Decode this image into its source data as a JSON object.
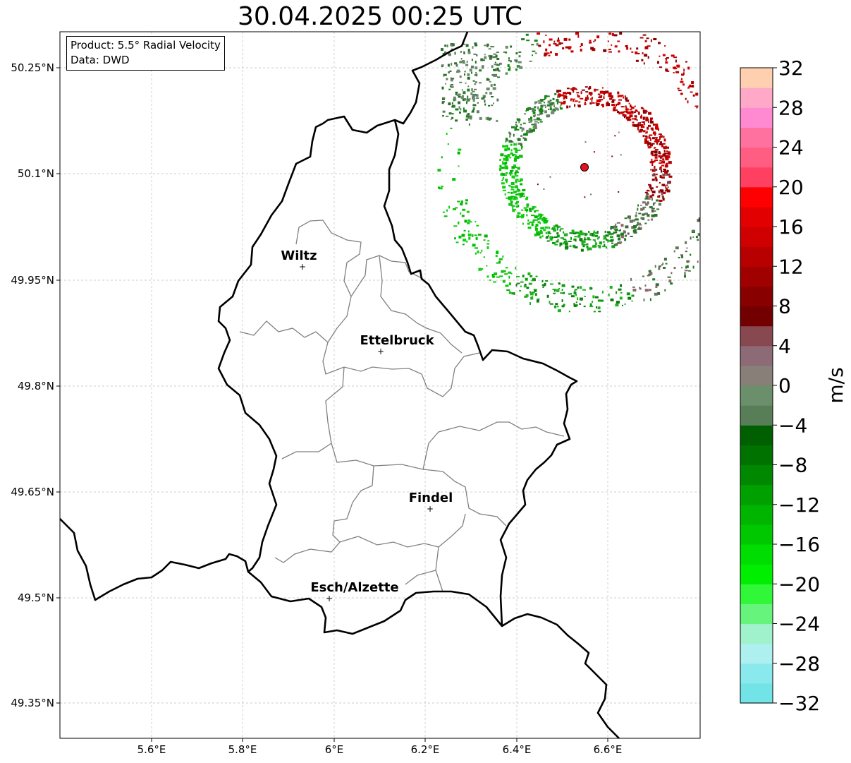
{
  "title": "30.04.2025 00:25 UTC",
  "info": {
    "product": "Product: 5.5° Radial Velocity",
    "data_source": "Data: DWD"
  },
  "axes": {
    "lon_ticks": [
      "5.6°E",
      "5.8°E",
      "6°E",
      "6.2°E",
      "6.4°E",
      "6.6°E"
    ],
    "lat_ticks": [
      "50.25°N",
      "50.1°N",
      "49.95°N",
      "49.8°N",
      "49.65°N",
      "49.5°N",
      "49.35°N"
    ]
  },
  "cities": [
    {
      "name": "Wiltz",
      "lon": 5.93,
      "lat": 49.967
    },
    {
      "name": "Ettelbruck",
      "lon": 6.1,
      "lat": 49.848
    },
    {
      "name": "Findel",
      "lon": 6.21,
      "lat": 49.627
    },
    {
      "name": "Esch/Alzette",
      "lon": 5.99,
      "lat": 49.499
    }
  ],
  "radar_site": {
    "lon": 6.548,
    "lat": 50.111,
    "color": "#e8101e"
  },
  "colorbar": {
    "label": "m/s",
    "min": -32,
    "max": 32,
    "tick_labels": [
      "32",
      "28",
      "24",
      "20",
      "16",
      "12",
      "8",
      "4",
      "0",
      "−4",
      "−8",
      "−12",
      "−16",
      "−20",
      "−24",
      "−28",
      "−32"
    ],
    "colors": [
      "#72e4e8",
      "#8ae9ec",
      "#aeeff0",
      "#a0f2cc",
      "#66f47c",
      "#30f838",
      "#00ee00",
      "#00dd00",
      "#00c800",
      "#00b500",
      "#00a000",
      "#008800",
      "#007200",
      "#005f00",
      "#577e57",
      "#6b8e6b",
      "#888078",
      "#8c6b77",
      "#884850",
      "#720000",
      "#880000",
      "#a00000",
      "#b80000",
      "#d00000",
      "#e20000",
      "#ff0000",
      "#ff4060",
      "#ff5e82",
      "#ff72a0",
      "#ff8ad2",
      "#ffa8c8",
      "#ffd0b0"
    ]
  }
}
